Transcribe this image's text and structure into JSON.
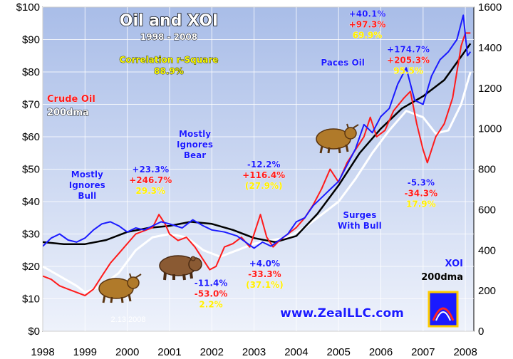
{
  "chart_data": {
    "type": "line",
    "title": "Oil and XOI",
    "subtitle": "1998 - 2008",
    "stat_label": "Correlation r-Square",
    "stat_value": "88.9%",
    "left_legend": [
      "Crude Oil",
      "200dma"
    ],
    "right_legend": [
      "XOI",
      "200dma"
    ],
    "date_label": "2.13.2008",
    "website": "www.ZealLLC.com",
    "x_ticks": [
      "1998",
      "1999",
      "2000",
      "2001",
      "2002",
      "2003",
      "2004",
      "2005",
      "2006",
      "2007",
      "2008"
    ],
    "y_left_ticks": [
      "$0",
      "$10",
      "$20",
      "$30",
      "$40",
      "$50",
      "$60",
      "$70",
      "$80",
      "$90",
      "$100"
    ],
    "y_right_ticks": [
      "0",
      "200",
      "400",
      "600",
      "800",
      "1000",
      "1200",
      "1400",
      "1600"
    ],
    "y_left_lim": [
      0,
      100
    ],
    "y_right_lim": [
      0,
      1600
    ],
    "x_lim": [
      1998.0,
      2008.2
    ],
    "colors": {
      "oil": "#ff1a1a",
      "xoi": "#1a1aff",
      "oil_dma": "#ffffff",
      "xoi_dma": "#000000",
      "bg_top": "#a9bde8",
      "bg_bottom": "#eef2fb"
    },
    "series": [
      {
        "name": "Crude Oil",
        "axis": "left",
        "color": "#ff1a1a",
        "x": [
          1998.0,
          1998.2,
          1998.4,
          1998.6,
          1998.8,
          1999.0,
          1999.2,
          1999.4,
          1999.6,
          1999.8,
          2000.0,
          2000.2,
          2000.4,
          2000.6,
          2000.75,
          2000.9,
          2001.0,
          2001.2,
          2001.4,
          2001.6,
          2001.8,
          2001.95,
          2002.1,
          2002.3,
          2002.5,
          2002.7,
          2002.9,
          2003.0,
          2003.15,
          2003.3,
          2003.45,
          2003.6,
          2003.8,
          2004.0,
          2004.2,
          2004.4,
          2004.6,
          2004.8,
          2005.0,
          2005.2,
          2005.4,
          2005.6,
          2005.75,
          2005.9,
          2006.1,
          2006.3,
          2006.55,
          2006.7,
          2006.85,
          2007.0,
          2007.1,
          2007.3,
          2007.5,
          2007.7,
          2007.9,
          2008.0,
          2008.12
        ],
        "y": [
          17,
          16,
          14,
          13,
          12,
          11,
          13,
          17,
          21,
          24,
          27,
          30,
          31,
          32,
          36,
          33,
          30,
          28,
          29,
          26,
          22,
          19,
          20,
          26,
          27,
          29,
          26,
          30,
          36,
          29,
          26,
          28,
          30,
          32,
          35,
          39,
          44,
          50,
          46,
          52,
          56,
          60,
          66,
          60,
          62,
          68,
          72,
          74,
          64,
          56,
          52,
          60,
          64,
          72,
          88,
          92,
          92
        ]
      },
      {
        "name": "XOI",
        "axis": "right",
        "color": "#1a1aff",
        "x": [
          1998.0,
          1998.2,
          1998.4,
          1998.6,
          1998.8,
          1999.0,
          1999.2,
          1999.4,
          1999.6,
          1999.8,
          2000.0,
          2000.2,
          2000.4,
          2000.6,
          2000.8,
          2001.0,
          2001.3,
          2001.55,
          2001.8,
          2002.0,
          2002.3,
          2002.6,
          2002.8,
          2003.0,
          2003.2,
          2003.4,
          2003.6,
          2003.8,
          2004.0,
          2004.2,
          2004.4,
          2004.6,
          2004.8,
          2005.0,
          2005.2,
          2005.4,
          2005.6,
          2005.8,
          2006.0,
          2006.2,
          2006.4,
          2006.6,
          2006.8,
          2007.0,
          2007.2,
          2007.4,
          2007.6,
          2007.8,
          2007.95,
          2008.05,
          2008.12
        ],
        "y": [
          420,
          460,
          480,
          450,
          440,
          460,
          500,
          530,
          540,
          520,
          490,
          510,
          500,
          520,
          540,
          530,
          510,
          550,
          520,
          500,
          490,
          470,
          440,
          410,
          440,
          420,
          450,
          480,
          540,
          560,
          620,
          660,
          700,
          740,
          820,
          900,
          1020,
          980,
          1060,
          1100,
          1220,
          1300,
          1140,
          1120,
          1260,
          1340,
          1380,
          1440,
          1560,
          1360,
          1380
        ]
      },
      {
        "name": "Oil 200dma",
        "axis": "left",
        "color": "#ffffff",
        "x": [
          1998.0,
          1998.4,
          1998.8,
          1999.0,
          1999.4,
          1999.8,
          2000.2,
          2000.6,
          2001.0,
          2001.4,
          2001.8,
          2002.2,
          2002.6,
          2003.0,
          2003.4,
          2003.8,
          2004.2,
          2004.6,
          2005.0,
          2005.4,
          2005.8,
          2006.2,
          2006.6,
          2007.0,
          2007.3,
          2007.6,
          2007.9,
          2008.12
        ],
        "y": [
          20,
          17,
          14,
          12,
          14,
          18,
          25,
          29,
          30,
          29,
          25,
          23,
          25,
          27,
          28,
          29,
          32,
          36,
          40,
          47,
          55,
          62,
          68,
          66,
          61,
          62,
          70,
          80
        ]
      },
      {
        "name": "XOI 200dma",
        "axis": "right",
        "color": "#000000",
        "x": [
          1998.0,
          1998.5,
          1999.0,
          1999.5,
          2000.0,
          2000.5,
          2001.0,
          2001.5,
          2002.0,
          2002.5,
          2003.0,
          2003.5,
          2004.0,
          2004.5,
          2005.0,
          2005.5,
          2006.0,
          2006.5,
          2007.0,
          2007.5,
          2008.12
        ],
        "y": [
          440,
          430,
          430,
          450,
          490,
          510,
          520,
          540,
          530,
          500,
          460,
          440,
          470,
          580,
          720,
          880,
          1000,
          1100,
          1160,
          1240,
          1420
        ]
      }
    ],
    "annotations": [
      {
        "lines": [
          "+40.1%",
          "+97.3%",
          "69.9%"
        ],
        "x": 2005.68,
        "y_left": 97
      },
      {
        "lines": [
          "+174.7%",
          "+205.3%",
          "95.5%"
        ],
        "x": 2006.65,
        "y_left": 86
      },
      {
        "lines": [
          "+23.3%",
          "+246.7%",
          "29.3%"
        ],
        "x": 2000.55,
        "y_left": 49
      },
      {
        "lines": [
          "-12.2%",
          "+116.4%",
          "(27.9%)"
        ],
        "x": 2003.23,
        "y_left": 50.5
      },
      {
        "lines": [
          "+4.0%",
          "-33.3%",
          "(37.1%)"
        ],
        "x": 2003.25,
        "y_left": 20
      },
      {
        "lines": [
          "-11.4%",
          "-53.0%",
          "2.2%"
        ],
        "x": 2001.98,
        "y_left": 14
      },
      {
        "lines": [
          "-5.3%",
          "-34.3%",
          "17.9%"
        ],
        "x": 2006.95,
        "y_left": 45
      }
    ],
    "notes": [
      {
        "lines": [
          "Mostly",
          "Ignores",
          "Bull"
        ],
        "x": 1999.05,
        "y_left": 47.5
      },
      {
        "lines": [
          "Mostly",
          "Ignores",
          "Bear"
        ],
        "x": 2001.6,
        "y_left": 60
      },
      {
        "lines": [
          "Paces Oil"
        ],
        "x": 2005.1,
        "y_left": 82
      },
      {
        "lines": [
          "Surges",
          "With Bull"
        ],
        "x": 2005.5,
        "y_left": 35
      }
    ]
  }
}
